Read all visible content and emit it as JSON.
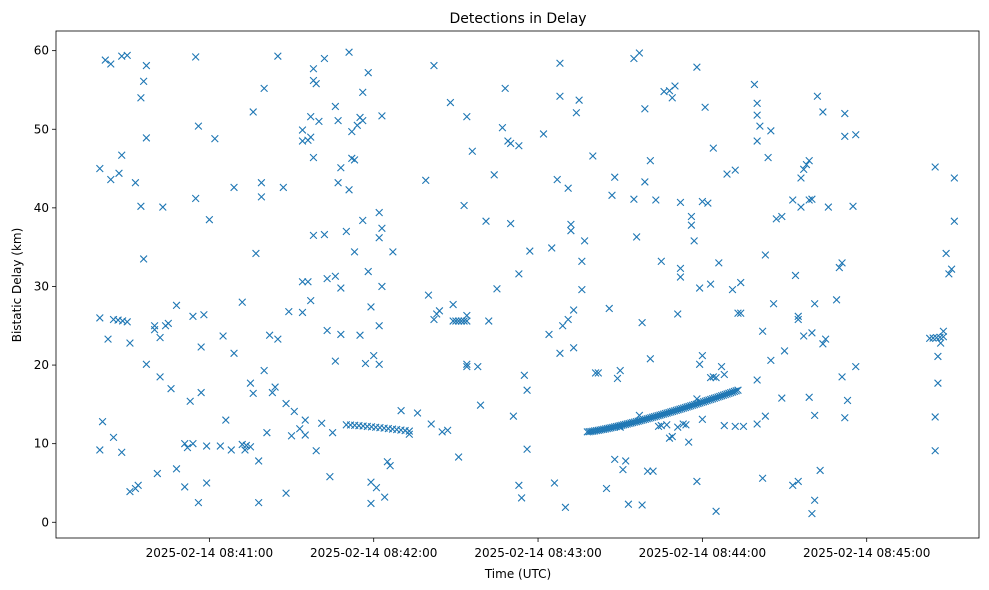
{
  "chart_data": {
    "type": "scatter",
    "title": "Detections in Delay",
    "xlabel": "Time (UTC)",
    "ylabel": "Bistatic Delay (km)",
    "marker": "x",
    "color": "#1f77b4",
    "x_unit": "time HH:MM:SS on 2025-02-14 (UTC)",
    "x_range": [
      "08:40:04",
      "08:45:41"
    ],
    "ylim": [
      -2.0,
      62.5
    ],
    "x_ticks": [
      {
        "time": "08:41:00",
        "label": "2025-02-14 08:41:00"
      },
      {
        "time": "08:42:00",
        "label": "2025-02-14 08:42:00"
      },
      {
        "time": "08:43:00",
        "label": "2025-02-14 08:43:00"
      },
      {
        "time": "08:44:00",
        "label": "2025-02-14 08:44:00"
      },
      {
        "time": "08:45:00",
        "label": "2025-02-14 08:45:00"
      }
    ],
    "y_ticks": [
      0,
      10,
      20,
      30,
      40,
      50,
      60
    ],
    "grid": false,
    "legend": "none",
    "tracks": [
      {
        "x_start": "08:41:50",
        "x_end": "08:42:13",
        "y_start": 12.4,
        "y_end": 11.6,
        "count": 16
      },
      {
        "x_start": "08:43:18",
        "x_end": "08:44:13",
        "y_start": 11.5,
        "y_end": 16.8,
        "count": 84
      },
      {
        "x_start": "08:42:29",
        "x_end": "08:42:34",
        "y_start": 25.6,
        "y_end": 25.6,
        "count": 6
      },
      {
        "x_start": "08:40:25",
        "x_end": "08:40:30",
        "y_start": 25.8,
        "y_end": 25.5,
        "count": 4
      },
      {
        "x_start": "08:41:12",
        "x_end": "08:41:15",
        "y_start": 9.9,
        "y_end": 9.6,
        "count": 3
      },
      {
        "x_start": "08:45:23",
        "x_end": "08:45:28",
        "y_start": 23.4,
        "y_end": 23.6,
        "count": 5
      }
    ],
    "points": [
      [
        "08:40:20",
        26.0
      ],
      [
        "08:40:20",
        45.0
      ],
      [
        "08:40:20",
        9.2
      ],
      [
        "08:40:21",
        12.8
      ],
      [
        "08:40:22",
        58.8
      ],
      [
        "08:40:23",
        23.3
      ],
      [
        "08:40:24",
        58.3
      ],
      [
        "08:40:24",
        43.6
      ],
      [
        "08:40:25",
        10.8
      ],
      [
        "08:40:27",
        44.4
      ],
      [
        "08:40:28",
        8.9
      ],
      [
        "08:40:28",
        59.3
      ],
      [
        "08:40:28",
        46.7
      ],
      [
        "08:40:30",
        59.4
      ],
      [
        "08:40:31",
        22.8
      ],
      [
        "08:40:31",
        3.9
      ],
      [
        "08:40:33",
        43.2
      ],
      [
        "08:40:33",
        4.3
      ],
      [
        "08:40:34",
        4.7
      ],
      [
        "08:40:35",
        54.0
      ],
      [
        "08:40:35",
        40.2
      ],
      [
        "08:40:36",
        56.1
      ],
      [
        "08:40:36",
        33.5
      ],
      [
        "08:40:37",
        48.9
      ],
      [
        "08:40:37",
        58.1
      ],
      [
        "08:40:37",
        20.1
      ],
      [
        "08:40:40",
        25.0
      ],
      [
        "08:40:40",
        24.5
      ],
      [
        "08:40:41",
        6.2
      ],
      [
        "08:40:42",
        18.5
      ],
      [
        "08:40:42",
        23.5
      ],
      [
        "08:40:43",
        40.1
      ],
      [
        "08:40:44",
        25.0
      ],
      [
        "08:40:45",
        25.3
      ],
      [
        "08:40:46",
        17.0
      ],
      [
        "08:40:48",
        27.6
      ],
      [
        "08:40:48",
        6.8
      ],
      [
        "08:40:51",
        10.0
      ],
      [
        "08:40:51",
        4.5
      ],
      [
        "08:40:52",
        9.5
      ],
      [
        "08:40:53",
        15.4
      ],
      [
        "08:40:54",
        10.0
      ],
      [
        "08:40:54",
        26.2
      ],
      [
        "08:40:55",
        59.2
      ],
      [
        "08:40:55",
        41.2
      ],
      [
        "08:40:56",
        50.4
      ],
      [
        "08:40:56",
        2.5
      ],
      [
        "08:40:57",
        16.5
      ],
      [
        "08:40:57",
        22.3
      ],
      [
        "08:40:58",
        26.4
      ],
      [
        "08:40:59",
        5.0
      ],
      [
        "08:40:59",
        9.7
      ],
      [
        "08:41:00",
        38.5
      ],
      [
        "08:41:02",
        48.8
      ],
      [
        "08:41:04",
        9.7
      ],
      [
        "08:41:05",
        23.7
      ],
      [
        "08:41:06",
        13.0
      ],
      [
        "08:41:08",
        9.2
      ],
      [
        "08:41:09",
        42.6
      ],
      [
        "08:41:09",
        21.5
      ],
      [
        "08:41:12",
        28.0
      ],
      [
        "08:41:13",
        9.2
      ],
      [
        "08:41:15",
        17.7
      ],
      [
        "08:41:16",
        16.4
      ],
      [
        "08:41:16",
        52.2
      ],
      [
        "08:41:17",
        34.2
      ],
      [
        "08:41:18",
        2.5
      ],
      [
        "08:41:18",
        7.8
      ],
      [
        "08:41:19",
        43.2
      ],
      [
        "08:41:19",
        41.4
      ],
      [
        "08:41:20",
        19.3
      ],
      [
        "08:41:20",
        55.2
      ],
      [
        "08:41:21",
        11.4
      ],
      [
        "08:41:22",
        23.8
      ],
      [
        "08:41:23",
        16.5
      ],
      [
        "08:41:24",
        17.2
      ],
      [
        "08:41:25",
        59.3
      ],
      [
        "08:41:25",
        23.3
      ],
      [
        "08:41:27",
        42.6
      ],
      [
        "08:41:28",
        15.1
      ],
      [
        "08:41:28",
        3.7
      ],
      [
        "08:41:29",
        26.8
      ],
      [
        "08:41:30",
        11.0
      ],
      [
        "08:41:31",
        14.1
      ],
      [
        "08:41:33",
        11.9
      ],
      [
        "08:41:34",
        26.7
      ],
      [
        "08:41:34",
        30.6
      ],
      [
        "08:41:34",
        49.9
      ],
      [
        "08:41:34",
        48.5
      ],
      [
        "08:41:35",
        13.0
      ],
      [
        "08:41:35",
        11.1
      ],
      [
        "08:41:36",
        30.6
      ],
      [
        "08:41:36",
        48.6
      ],
      [
        "08:41:37",
        51.6
      ],
      [
        "08:41:37",
        28.2
      ],
      [
        "08:41:37",
        49.0
      ],
      [
        "08:41:38",
        46.4
      ],
      [
        "08:41:38",
        56.2
      ],
      [
        "08:41:38",
        57.7
      ],
      [
        "08:41:38",
        36.5
      ],
      [
        "08:41:39",
        9.1
      ],
      [
        "08:41:39",
        55.8
      ],
      [
        "08:41:40",
        51.0
      ],
      [
        "08:41:41",
        12.6
      ],
      [
        "08:41:42",
        36.6
      ],
      [
        "08:41:42",
        59.0
      ],
      [
        "08:41:43",
        24.4
      ],
      [
        "08:41:43",
        31.0
      ],
      [
        "08:41:44",
        5.8
      ],
      [
        "08:41:45",
        11.4
      ],
      [
        "08:41:46",
        20.5
      ],
      [
        "08:41:46",
        52.9
      ],
      [
        "08:41:46",
        31.3
      ],
      [
        "08:41:47",
        51.1
      ],
      [
        "08:41:47",
        43.2
      ],
      [
        "08:41:48",
        29.8
      ],
      [
        "08:41:48",
        23.9
      ],
      [
        "08:41:48",
        45.1
      ],
      [
        "08:41:50",
        37.0
      ],
      [
        "08:41:51",
        42.3
      ],
      [
        "08:41:51",
        59.8
      ],
      [
        "08:41:52",
        49.7
      ],
      [
        "08:41:52",
        46.3
      ],
      [
        "08:41:53",
        34.4
      ],
      [
        "08:41:53",
        46.1
      ],
      [
        "08:41:54",
        50.5
      ],
      [
        "08:41:55",
        51.5
      ],
      [
        "08:41:55",
        23.8
      ],
      [
        "08:41:56",
        38.4
      ],
      [
        "08:41:56",
        51.1
      ],
      [
        "08:41:56",
        54.7
      ],
      [
        "08:41:57",
        20.2
      ],
      [
        "08:41:58",
        57.2
      ],
      [
        "08:41:58",
        31.9
      ],
      [
        "08:41:59",
        2.4
      ],
      [
        "08:41:59",
        5.1
      ],
      [
        "08:41:59",
        27.4
      ],
      [
        "08:42:00",
        21.2
      ],
      [
        "08:42:01",
        4.4
      ],
      [
        "08:42:02",
        20.1
      ],
      [
        "08:42:02",
        36.2
      ],
      [
        "08:42:02",
        25.0
      ],
      [
        "08:42:02",
        39.4
      ],
      [
        "08:42:03",
        30.0
      ],
      [
        "08:42:03",
        37.4
      ],
      [
        "08:42:03",
        51.7
      ],
      [
        "08:42:04",
        3.2
      ],
      [
        "08:42:05",
        7.7
      ],
      [
        "08:42:06",
        7.2
      ],
      [
        "08:42:07",
        34.4
      ],
      [
        "08:42:10",
        14.2
      ],
      [
        "08:42:13",
        11.2
      ],
      [
        "08:42:16",
        13.9
      ],
      [
        "08:42:19",
        43.5
      ],
      [
        "08:42:20",
        28.9
      ],
      [
        "08:42:22",
        58.1
      ],
      [
        "08:42:22",
        25.8
      ],
      [
        "08:42:21",
        12.5
      ],
      [
        "08:42:23",
        26.5
      ],
      [
        "08:42:24",
        26.9
      ],
      [
        "08:42:25",
        11.5
      ],
      [
        "08:42:27",
        11.7
      ],
      [
        "08:42:28",
        53.4
      ],
      [
        "08:42:29",
        27.7
      ],
      [
        "08:42:31",
        8.3
      ],
      [
        "08:42:33",
        40.3
      ],
      [
        "08:42:34",
        26.3
      ],
      [
        "08:42:34",
        51.6
      ],
      [
        "08:42:34",
        20.1
      ],
      [
        "08:42:34",
        19.8
      ],
      [
        "08:42:36",
        47.2
      ],
      [
        "08:42:38",
        19.8
      ],
      [
        "08:42:39",
        14.9
      ],
      [
        "08:42:41",
        38.3
      ],
      [
        "08:42:42",
        25.6
      ],
      [
        "08:42:44",
        44.2
      ],
      [
        "08:42:45",
        29.7
      ],
      [
        "08:42:48",
        55.2
      ],
      [
        "08:42:47",
        50.2
      ],
      [
        "08:42:49",
        48.5
      ],
      [
        "08:42:50",
        48.2
      ],
      [
        "08:42:50",
        38.0
      ],
      [
        "08:42:51",
        13.5
      ],
      [
        "08:42:53",
        31.6
      ],
      [
        "08:42:53",
        4.7
      ],
      [
        "08:42:54",
        3.1
      ],
      [
        "08:42:53",
        47.9
      ],
      [
        "08:42:55",
        18.7
      ],
      [
        "08:42:56",
        16.8
      ],
      [
        "08:42:56",
        9.3
      ],
      [
        "08:42:57",
        34.5
      ],
      [
        "08:43:02",
        49.4
      ],
      [
        "08:43:04",
        23.9
      ],
      [
        "08:43:05",
        34.9
      ],
      [
        "08:43:06",
        5.0
      ],
      [
        "08:43:07",
        43.6
      ],
      [
        "08:43:08",
        21.5
      ],
      [
        "08:43:08",
        58.4
      ],
      [
        "08:43:08",
        54.2
      ],
      [
        "08:43:09",
        25.0
      ],
      [
        "08:43:10",
        1.9
      ],
      [
        "08:43:11",
        42.5
      ],
      [
        "08:43:11",
        25.8
      ],
      [
        "08:43:12",
        37.1
      ],
      [
        "08:43:12",
        37.9
      ],
      [
        "08:43:13",
        27.0
      ],
      [
        "08:43:13",
        22.2
      ],
      [
        "08:43:14",
        52.1
      ],
      [
        "08:43:15",
        53.7
      ],
      [
        "08:43:16",
        33.2
      ],
      [
        "08:43:16",
        29.6
      ],
      [
        "08:43:17",
        35.8
      ],
      [
        "08:43:20",
        46.6
      ],
      [
        "08:43:21",
        19.0
      ],
      [
        "08:43:22",
        19.0
      ],
      [
        "08:43:25",
        4.3
      ],
      [
        "08:43:26",
        27.2
      ],
      [
        "08:43:27",
        41.6
      ],
      [
        "08:43:28",
        43.9
      ],
      [
        "08:43:28",
        8.0
      ],
      [
        "08:43:29",
        18.3
      ],
      [
        "08:43:30",
        19.3
      ],
      [
        "08:43:30",
        12.1
      ],
      [
        "08:43:31",
        6.7
      ],
      [
        "08:43:32",
        7.8
      ],
      [
        "08:43:33",
        2.3
      ],
      [
        "08:43:35",
        59.0
      ],
      [
        "08:43:35",
        41.1
      ],
      [
        "08:43:36",
        36.3
      ],
      [
        "08:43:37",
        59.7
      ],
      [
        "08:43:37",
        13.6
      ],
      [
        "08:43:38",
        2.2
      ],
      [
        "08:43:38",
        25.4
      ],
      [
        "08:43:39",
        52.6
      ],
      [
        "08:43:39",
        43.3
      ],
      [
        "08:43:40",
        6.5
      ],
      [
        "08:43:41",
        46.0
      ],
      [
        "08:43:41",
        20.8
      ],
      [
        "08:43:42",
        6.5
      ],
      [
        "08:43:43",
        41.0
      ],
      [
        "08:43:44",
        12.2
      ],
      [
        "08:43:45",
        33.2
      ],
      [
        "08:43:45",
        12.3
      ],
      [
        "08:43:46",
        54.8
      ],
      [
        "08:43:47",
        12.4
      ],
      [
        "08:43:48",
        54.9
      ],
      [
        "08:43:48",
        10.7
      ],
      [
        "08:43:49",
        10.9
      ],
      [
        "08:43:49",
        54.0
      ],
      [
        "08:43:50",
        55.5
      ],
      [
        "08:43:51",
        12.1
      ],
      [
        "08:43:51",
        26.5
      ],
      [
        "08:43:52",
        40.7
      ],
      [
        "08:43:52",
        32.3
      ],
      [
        "08:43:52",
        31.2
      ],
      [
        "08:43:53",
        12.5
      ],
      [
        "08:43:54",
        12.4
      ],
      [
        "08:43:55",
        10.2
      ],
      [
        "08:43:56",
        37.8
      ],
      [
        "08:43:56",
        38.9
      ],
      [
        "08:43:57",
        35.8
      ],
      [
        "08:43:58",
        15.7
      ],
      [
        "08:43:58",
        5.2
      ],
      [
        "08:43:58",
        57.9
      ],
      [
        "08:43:59",
        20.1
      ],
      [
        "08:43:59",
        29.8
      ],
      [
        "08:44:00",
        21.2
      ],
      [
        "08:44:00",
        13.1
      ],
      [
        "08:44:00",
        40.8
      ],
      [
        "08:44:01",
        52.8
      ],
      [
        "08:44:02",
        40.6
      ],
      [
        "08:44:03",
        18.4
      ],
      [
        "08:44:03",
        30.3
      ],
      [
        "08:44:04",
        18.5
      ],
      [
        "08:44:04",
        47.6
      ],
      [
        "08:44:05",
        1.4
      ],
      [
        "08:44:05",
        18.4
      ],
      [
        "08:44:06",
        33.0
      ],
      [
        "08:44:07",
        19.8
      ],
      [
        "08:44:08",
        12.3
      ],
      [
        "08:44:08",
        18.8
      ],
      [
        "08:44:09",
        44.3
      ],
      [
        "08:44:11",
        29.6
      ],
      [
        "08:44:12",
        44.8
      ],
      [
        "08:44:12",
        12.2
      ],
      [
        "08:44:13",
        26.6
      ],
      [
        "08:44:14",
        26.6
      ],
      [
        "08:44:14",
        30.5
      ],
      [
        "08:44:15",
        12.2
      ],
      [
        "08:44:19",
        55.7
      ],
      [
        "08:44:20",
        48.5
      ],
      [
        "08:44:20",
        53.3
      ],
      [
        "08:44:20",
        51.8
      ],
      [
        "08:44:20",
        12.5
      ],
      [
        "08:44:20",
        18.1
      ],
      [
        "08:44:21",
        50.4
      ],
      [
        "08:44:22",
        24.3
      ],
      [
        "08:44:22",
        5.6
      ],
      [
        "08:44:23",
        13.5
      ],
      [
        "08:44:23",
        34.0
      ],
      [
        "08:44:24",
        46.4
      ],
      [
        "08:44:25",
        49.8
      ],
      [
        "08:44:25",
        20.6
      ],
      [
        "08:44:26",
        27.8
      ],
      [
        "08:44:27",
        38.6
      ],
      [
        "08:44:29",
        15.8
      ],
      [
        "08:44:29",
        38.9
      ],
      [
        "08:44:30",
        21.8
      ],
      [
        "08:44:33",
        41.0
      ],
      [
        "08:44:33",
        4.7
      ],
      [
        "08:44:34",
        31.4
      ],
      [
        "08:44:35",
        25.8
      ],
      [
        "08:44:35",
        26.2
      ],
      [
        "08:44:35",
        5.2
      ],
      [
        "08:44:36",
        40.1
      ],
      [
        "08:44:36",
        43.8
      ],
      [
        "08:44:37",
        44.9
      ],
      [
        "08:44:37",
        23.7
      ],
      [
        "08:44:38",
        45.5
      ],
      [
        "08:44:39",
        41.0
      ],
      [
        "08:44:39",
        46.0
      ],
      [
        "08:44:39",
        15.9
      ],
      [
        "08:44:40",
        1.1
      ],
      [
        "08:44:40",
        24.1
      ],
      [
        "08:44:40",
        41.1
      ],
      [
        "08:44:41",
        27.8
      ],
      [
        "08:44:41",
        13.6
      ],
      [
        "08:44:41",
        2.8
      ],
      [
        "08:44:42",
        54.2
      ],
      [
        "08:44:43",
        6.6
      ],
      [
        "08:44:44",
        22.7
      ],
      [
        "08:44:44",
        52.2
      ],
      [
        "08:44:45",
        23.3
      ],
      [
        "08:44:46",
        40.1
      ],
      [
        "08:44:49",
        28.3
      ],
      [
        "08:44:50",
        32.4
      ],
      [
        "08:44:51",
        33.0
      ],
      [
        "08:44:51",
        18.5
      ],
      [
        "08:44:52",
        13.3
      ],
      [
        "08:44:52",
        49.1
      ],
      [
        "08:44:53",
        15.5
      ],
      [
        "08:44:52",
        52.0
      ],
      [
        "08:44:55",
        40.2
      ],
      [
        "08:44:56",
        49.3
      ],
      [
        "08:44:56",
        19.8
      ],
      [
        "08:45:25",
        45.2
      ],
      [
        "08:45:25",
        13.4
      ],
      [
        "08:45:25",
        9.1
      ],
      [
        "08:45:26",
        17.7
      ],
      [
        "08:45:26",
        21.1
      ],
      [
        "08:45:27",
        22.8
      ],
      [
        "08:45:28",
        24.3
      ],
      [
        "08:45:29",
        34.2
      ],
      [
        "08:45:30",
        31.6
      ],
      [
        "08:45:31",
        32.2
      ],
      [
        "08:45:32",
        43.8
      ],
      [
        "08:45:32",
        38.3
      ]
    ]
  }
}
